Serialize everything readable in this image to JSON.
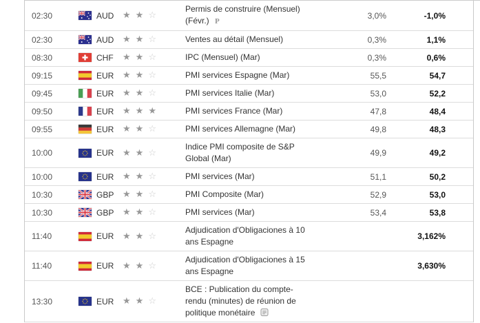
{
  "icons": {
    "star_filled": "★",
    "star_empty": "☆",
    "preliminary_marker": "P"
  },
  "colors": {
    "row_separator": "#dcdcdc",
    "table_border": "#c9c9c9",
    "star_filled": "#989898",
    "star_empty": "#cccccc",
    "value_normal": "#555555",
    "value_bold": "#111111"
  },
  "calendar": {
    "rows": [
      {
        "time": "02:30",
        "flag": "australia",
        "currency": "AUD",
        "importance": 2,
        "event": "Permis de construire (Mensuel) (Févr.)",
        "marker": "P",
        "report_icon": false,
        "value1": "3,0%",
        "value2": "-1,0%"
      },
      {
        "time": "02:30",
        "flag": "australia",
        "currency": "AUD",
        "importance": 2,
        "event": "Ventes au détail (Mensuel)",
        "marker": "",
        "report_icon": false,
        "value1": "0,3%",
        "value2": "1,1%"
      },
      {
        "time": "08:30",
        "flag": "switzerland",
        "currency": "CHF",
        "importance": 2,
        "event": "IPC (Mensuel) (Mar)",
        "marker": "",
        "report_icon": false,
        "value1": "0,3%",
        "value2": "0,6%"
      },
      {
        "time": "09:15",
        "flag": "spain",
        "currency": "EUR",
        "importance": 2,
        "event": "PMI services Espagne (Mar)",
        "marker": "",
        "report_icon": false,
        "value1": "55,5",
        "value2": "54,7"
      },
      {
        "time": "09:45",
        "flag": "italy",
        "currency": "EUR",
        "importance": 2,
        "event": "PMI services Italie (Mar)",
        "marker": "",
        "report_icon": false,
        "value1": "53,0",
        "value2": "52,2"
      },
      {
        "time": "09:50",
        "flag": "france",
        "currency": "EUR",
        "importance": 3,
        "event": "PMI services France (Mar)",
        "marker": "",
        "report_icon": false,
        "value1": "47,8",
        "value2": "48,4"
      },
      {
        "time": "09:55",
        "flag": "germany",
        "currency": "EUR",
        "importance": 2,
        "event": "PMI services Allemagne (Mar)",
        "marker": "",
        "report_icon": false,
        "value1": "49,8",
        "value2": "48,3"
      },
      {
        "time": "10:00",
        "flag": "european-union",
        "currency": "EUR",
        "importance": 2,
        "event": "Indice PMI composite de S&P Global (Mar)",
        "marker": "",
        "report_icon": false,
        "value1": "49,9",
        "value2": "49,2"
      },
      {
        "time": "10:00",
        "flag": "european-union",
        "currency": "EUR",
        "importance": 2,
        "event": "PMI services (Mar)",
        "marker": "",
        "report_icon": false,
        "value1": "51,1",
        "value2": "50,2"
      },
      {
        "time": "10:30",
        "flag": "united-kingdom",
        "currency": "GBP",
        "importance": 2,
        "event": "PMI Composite (Mar)",
        "marker": "",
        "report_icon": false,
        "value1": "52,9",
        "value2": "53,0"
      },
      {
        "time": "10:30",
        "flag": "united-kingdom",
        "currency": "GBP",
        "importance": 2,
        "event": "PMI services (Mar)",
        "marker": "",
        "report_icon": false,
        "value1": "53,4",
        "value2": "53,8"
      },
      {
        "time": "11:40",
        "flag": "spain",
        "currency": "EUR",
        "importance": 2,
        "event": "Adjudication d'Obligaciones à 10 ans Espagne",
        "marker": "",
        "report_icon": false,
        "value1": "",
        "value2": "3,162%"
      },
      {
        "time": "11:40",
        "flag": "spain",
        "currency": "EUR",
        "importance": 2,
        "event": "Adjudication d'Obligaciones à 15 ans Espagne",
        "marker": "",
        "report_icon": false,
        "value1": "",
        "value2": "3,630%"
      },
      {
        "time": "13:30",
        "flag": "european-union",
        "currency": "EUR",
        "importance": 2,
        "event": "BCE : Publication du compte-rendu (minutes) de réunion de politique monétaire",
        "marker": "",
        "report_icon": true,
        "value1": "",
        "value2": ""
      }
    ]
  }
}
